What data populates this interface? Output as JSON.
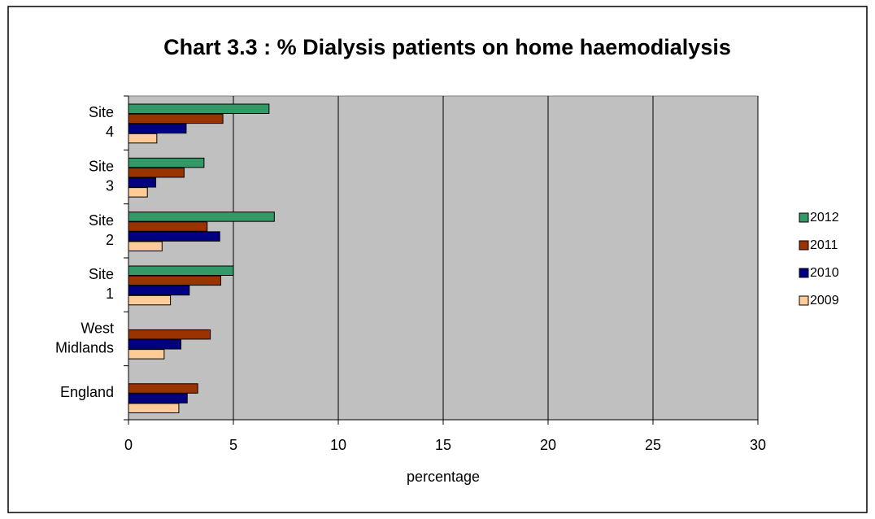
{
  "chart_data": {
    "type": "hbar",
    "title": "Chart 3.3 : % Dialysis patients on home haemodialysis",
    "xlabel": "percentage",
    "categories": [
      "England",
      "West Midlands",
      "Site 1",
      "Site 2",
      "Site 3",
      "Site 4"
    ],
    "series": [
      {
        "name": "2012",
        "color": "#339966",
        "values": [
          null,
          null,
          5.0,
          6.95,
          3.6,
          6.7
        ]
      },
      {
        "name": "2011",
        "color": "#993300",
        "values": [
          3.3,
          3.9,
          4.4,
          3.75,
          2.65,
          4.5
        ]
      },
      {
        "name": "2010",
        "color": "#000080",
        "values": [
          2.8,
          2.5,
          2.9,
          4.35,
          1.3,
          2.75
        ]
      },
      {
        "name": "2009",
        "color": "#FFCC99",
        "values": [
          2.4,
          1.7,
          2.0,
          1.6,
          0.9,
          1.35
        ]
      }
    ],
    "xlim": [
      0,
      30
    ],
    "xticks": [
      0,
      5,
      10,
      15,
      20,
      25,
      30
    ],
    "grid": true,
    "legend": "right",
    "plot_background": "#c0c0c0"
  }
}
